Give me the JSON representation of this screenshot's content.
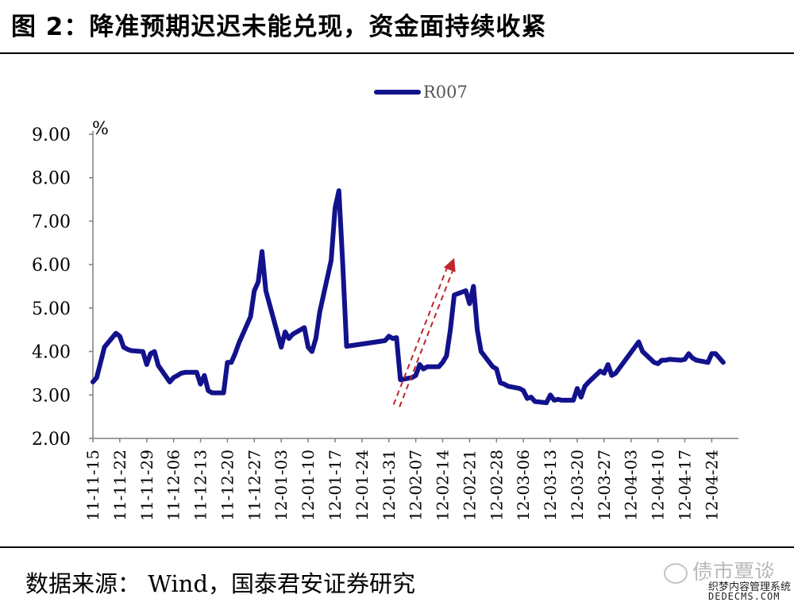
{
  "title": "图 2：降准预期迟迟未能兑现，资金面持续收紧",
  "source": "数据来源： Wind，国泰君安证券研究",
  "watermark": {
    "account": "债市覃谈",
    "site_cn": "织梦内容管理系统",
    "site_en": "DEDECMS.COM"
  },
  "colors": {
    "series": "#12128c",
    "arrow": "#c0262d",
    "axis": "#7f7f7f"
  },
  "chart_data": {
    "type": "line",
    "ylabel": "%",
    "ylim": [
      2.0,
      9.0
    ],
    "yticks": [
      "2.00",
      "3.00",
      "4.00",
      "5.00",
      "6.00",
      "7.00",
      "8.00",
      "9.00"
    ],
    "xticks": [
      "11-11-15",
      "11-11-22",
      "11-11-29",
      "11-12-06",
      "11-12-13",
      "11-12-20",
      "11-12-27",
      "12-01-03",
      "12-01-10",
      "12-01-17",
      "12-01-24",
      "12-01-31",
      "12-02-07",
      "12-02-14",
      "12-02-21",
      "12-02-28",
      "12-03-06",
      "12-03-13",
      "12-03-20",
      "12-03-27",
      "12-04-03",
      "12-04-10",
      "12-04-17",
      "12-04-24"
    ],
    "legend": "top-center",
    "grid": false,
    "series": [
      {
        "name": "R007",
        "x": [
          "2011-11-15",
          "2011-11-16",
          "2011-11-17",
          "2011-11-18",
          "2011-11-21",
          "2011-11-22",
          "2011-11-23",
          "2011-11-24",
          "2011-11-25",
          "2011-11-28",
          "2011-11-29",
          "2011-11-30",
          "2011-12-01",
          "2011-12-02",
          "2011-12-05",
          "2011-12-06",
          "2011-12-07",
          "2011-12-08",
          "2011-12-09",
          "2011-12-12",
          "2011-12-13",
          "2011-12-14",
          "2011-12-15",
          "2011-12-16",
          "2011-12-19",
          "2011-12-20",
          "2011-12-21",
          "2011-12-22",
          "2011-12-23",
          "2011-12-26",
          "2011-12-27",
          "2011-12-28",
          "2011-12-29",
          "2011-12-30",
          "2012-01-03",
          "2012-01-04",
          "2012-01-05",
          "2012-01-06",
          "2012-01-09",
          "2012-01-10",
          "2012-01-11",
          "2012-01-12",
          "2012-01-13",
          "2012-01-16",
          "2012-01-17",
          "2012-01-18",
          "2012-01-19",
          "2012-01-20",
          "2012-01-30",
          "2012-01-31",
          "2012-02-01",
          "2012-02-02",
          "2012-02-03",
          "2012-02-06",
          "2012-02-07",
          "2012-02-08",
          "2012-02-09",
          "2012-02-10",
          "2012-02-13",
          "2012-02-14",
          "2012-02-15",
          "2012-02-16",
          "2012-02-17",
          "2012-02-20",
          "2012-02-21",
          "2012-02-22",
          "2012-02-23",
          "2012-02-24",
          "2012-02-27",
          "2012-02-28",
          "2012-02-29",
          "2012-03-01",
          "2012-03-02",
          "2012-03-05",
          "2012-03-06",
          "2012-03-07",
          "2012-03-08",
          "2012-03-09",
          "2012-03-12",
          "2012-03-13",
          "2012-03-14",
          "2012-03-15",
          "2012-03-16",
          "2012-03-19",
          "2012-03-20",
          "2012-03-21",
          "2012-03-22",
          "2012-03-23",
          "2012-03-26",
          "2012-03-27",
          "2012-03-28",
          "2012-03-29",
          "2012-03-30",
          "2012-04-05",
          "2012-04-06",
          "2012-04-09",
          "2012-04-10",
          "2012-04-11",
          "2012-04-12",
          "2012-04-13",
          "2012-04-16",
          "2012-04-17",
          "2012-04-18",
          "2012-04-19",
          "2012-04-20",
          "2012-04-23",
          "2012-04-24",
          "2012-04-25",
          "2012-04-26",
          "2012-04-27"
        ],
        "values": [
          3.3,
          3.4,
          3.75,
          4.1,
          4.42,
          4.35,
          4.1,
          4.05,
          4.02,
          4.0,
          3.7,
          3.95,
          4.0,
          3.68,
          3.3,
          3.4,
          3.45,
          3.5,
          3.52,
          3.52,
          3.25,
          3.45,
          3.1,
          3.05,
          3.05,
          3.75,
          3.75,
          3.95,
          4.2,
          4.8,
          5.4,
          5.6,
          6.3,
          5.4,
          4.1,
          4.45,
          4.3,
          4.4,
          4.55,
          4.1,
          4.0,
          4.3,
          4.9,
          6.1,
          7.3,
          7.7,
          6.0,
          4.12,
          4.25,
          4.35,
          4.3,
          4.32,
          3.35,
          3.4,
          3.45,
          3.7,
          3.6,
          3.65,
          3.65,
          3.75,
          3.9,
          4.5,
          5.3,
          5.4,
          5.1,
          5.5,
          4.5,
          4.0,
          3.65,
          3.6,
          3.28,
          3.25,
          3.2,
          3.15,
          3.1,
          2.92,
          2.95,
          2.85,
          2.82,
          3.0,
          2.88,
          2.9,
          2.88,
          2.88,
          3.15,
          2.95,
          3.2,
          3.3,
          3.55,
          3.5,
          3.7,
          3.45,
          3.5,
          4.22,
          4.0,
          3.75,
          3.72,
          3.8,
          3.8,
          3.82,
          3.8,
          3.82,
          3.95,
          3.85,
          3.8,
          3.75,
          3.95,
          3.95,
          3.85,
          3.75
        ]
      }
    ],
    "annotations": [
      {
        "type": "arrow",
        "style": "dashed",
        "from": {
          "x": "2012-02-02",
          "y": 2.75
        },
        "to": {
          "x": "2012-02-17",
          "y": 6.15
        }
      }
    ]
  }
}
